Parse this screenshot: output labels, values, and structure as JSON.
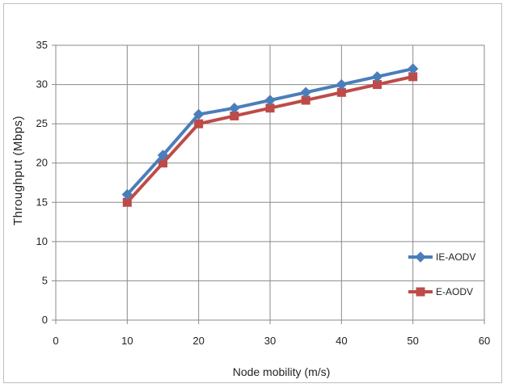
{
  "chart_data": {
    "type": "line",
    "title": "",
    "xlabel": "Node mobility (m/s)",
    "ylabel": "Throughput (Mbps)",
    "xlim": [
      0,
      60
    ],
    "ylim": [
      0,
      35
    ],
    "xticks": [
      0,
      10,
      20,
      30,
      40,
      50,
      60
    ],
    "yticks": [
      0,
      5,
      10,
      15,
      20,
      25,
      30,
      35
    ],
    "grid": true,
    "legend_position": "right",
    "x": [
      10,
      15,
      20,
      25,
      30,
      35,
      40,
      45,
      50
    ],
    "series": [
      {
        "name": "IE-AODV",
        "color": "#4a7ebb",
        "marker": "diamond",
        "values": [
          16,
          21,
          26.2,
          27,
          28,
          29,
          30,
          31,
          32
        ]
      },
      {
        "name": "E-AODV",
        "color": "#be4b48",
        "marker": "square",
        "values": [
          15,
          20,
          25,
          26,
          27,
          28,
          29,
          30,
          31
        ]
      }
    ]
  }
}
